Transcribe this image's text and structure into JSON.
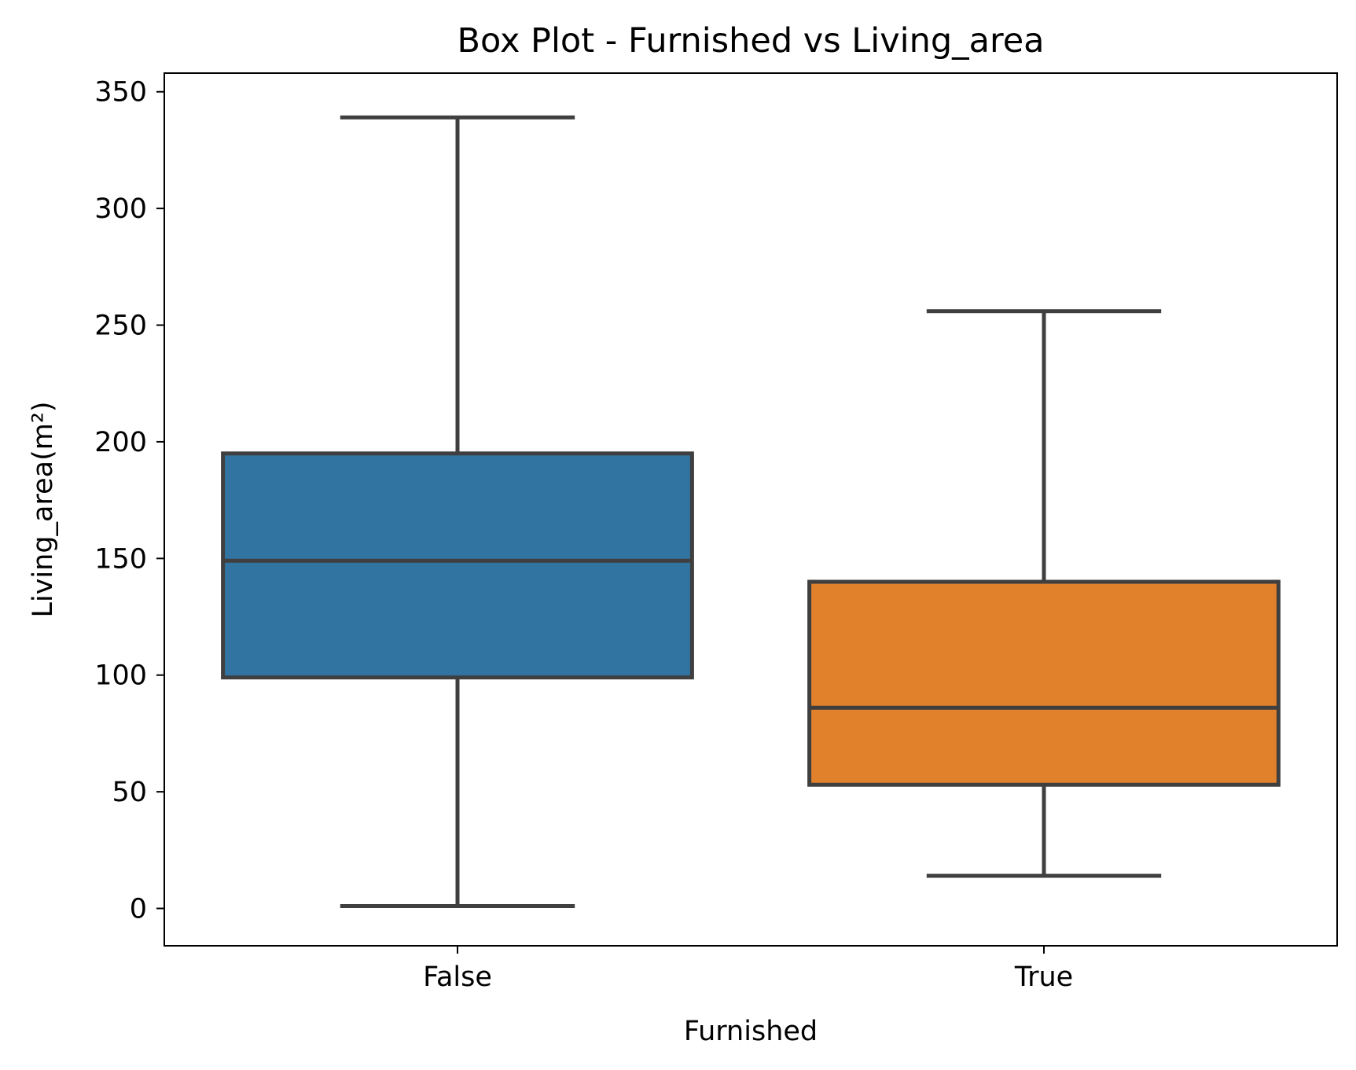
{
  "chart_data": {
    "type": "box",
    "title": "Box Plot - Furnished vs Living_area",
    "xlabel": "Furnished",
    "ylabel": "Living_area(m²)",
    "categories": [
      "False",
      "True"
    ],
    "boxes": [
      {
        "category": "False",
        "whisker_low": 1,
        "q1": 99,
        "median": 149,
        "q3": 195,
        "whisker_high": 339,
        "color": "#3274a1"
      },
      {
        "category": "True",
        "whisker_low": 14,
        "q1": 53,
        "median": 86,
        "q3": 140,
        "whisker_high": 256,
        "color": "#e1812c"
      }
    ],
    "yticks": [
      0,
      50,
      100,
      150,
      200,
      250,
      300,
      350
    ],
    "ytick_labels": [
      "0",
      "50",
      "100",
      "150",
      "200",
      "250",
      "300",
      "350"
    ],
    "ylim": [
      -16,
      358
    ],
    "grid": false
  }
}
